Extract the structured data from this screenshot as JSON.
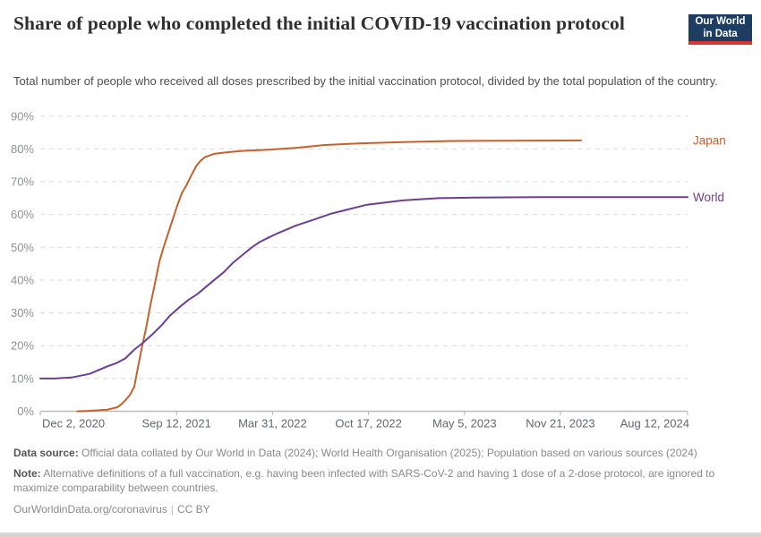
{
  "header": {
    "title": "Share of people who completed the initial COVID-19 vaccination protocol",
    "subtitle": "Total number of people who received all doses prescribed by the initial vaccination protocol, divided by the total population of the country.",
    "logo": {
      "line1": "Our World",
      "line2": "in Data",
      "bg_color": "#1d3d63",
      "accent_color": "#dc352c"
    }
  },
  "chart_data": {
    "type": "line",
    "title": "Share of people who completed the initial COVID-19 vaccination protocol",
    "grid": "dashed",
    "legend_position": "right-of-line-end",
    "x_axis": {
      "unit": "days since Dec 2, 2020",
      "range_days": [
        0,
        1349
      ],
      "ticks": [
        {
          "day": 0,
          "label": "Dec 2, 2020"
        },
        {
          "day": 284,
          "label": "Sep 12, 2021"
        },
        {
          "day": 484,
          "label": "Mar 31, 2022"
        },
        {
          "day": 684,
          "label": "Oct 17, 2022"
        },
        {
          "day": 884,
          "label": "May 5, 2023"
        },
        {
          "day": 1084,
          "label": "Nov 21, 2023"
        },
        {
          "day": 1349,
          "label": "Aug 12, 2024"
        }
      ]
    },
    "y_axis": {
      "min": 0,
      "max": 90,
      "step": 10,
      "tick_format": "%",
      "tick_labels": [
        "0%",
        "10%",
        "20%",
        "30%",
        "40%",
        "50%",
        "60%",
        "70%",
        "80%",
        "90%"
      ]
    },
    "series": [
      {
        "name": "Japan",
        "color": "#c6612c",
        "points": [
          [
            77,
            0
          ],
          [
            100,
            0.1
          ],
          [
            140,
            0.5
          ],
          [
            160,
            1.2
          ],
          [
            168,
            2
          ],
          [
            177,
            3.3
          ],
          [
            187,
            5
          ],
          [
            196,
            7.5
          ],
          [
            203,
            13
          ],
          [
            211,
            19
          ],
          [
            220,
            25
          ],
          [
            229,
            32
          ],
          [
            239,
            39
          ],
          [
            248,
            45.5
          ],
          [
            257,
            50
          ],
          [
            267,
            54.5
          ],
          [
            276,
            58.5
          ],
          [
            285,
            62.5
          ],
          [
            295,
            66.5
          ],
          [
            306,
            69.3
          ],
          [
            315,
            72
          ],
          [
            325,
            74.8
          ],
          [
            334,
            76.4
          ],
          [
            343,
            77.5
          ],
          [
            362,
            78.5
          ],
          [
            383,
            78.9
          ],
          [
            420,
            79.4
          ],
          [
            476,
            79.8
          ],
          [
            532,
            80.3
          ],
          [
            593,
            81.2
          ],
          [
            662,
            81.7
          ],
          [
            756,
            82.1
          ],
          [
            849,
            82.4
          ],
          [
            961,
            82.5
          ],
          [
            1127,
            82.6
          ]
        ]
      },
      {
        "name": "World",
        "color": "#6d3e91",
        "points": [
          [
            0,
            10
          ],
          [
            30,
            10
          ],
          [
            65,
            10.3
          ],
          [
            103,
            11.4
          ],
          [
            140,
            13.7
          ],
          [
            159,
            14.7
          ],
          [
            177,
            16.1
          ],
          [
            196,
            18.8
          ],
          [
            215,
            21
          ],
          [
            233,
            23.4
          ],
          [
            252,
            26.1
          ],
          [
            271,
            29.3
          ],
          [
            289,
            31.6
          ],
          [
            308,
            33.9
          ],
          [
            327,
            35.7
          ],
          [
            345,
            37.9
          ],
          [
            364,
            40.2
          ],
          [
            383,
            42.5
          ],
          [
            401,
            45.2
          ],
          [
            420,
            47.5
          ],
          [
            439,
            49.8
          ],
          [
            457,
            51.6
          ],
          [
            476,
            53
          ],
          [
            495,
            54.3
          ],
          [
            513,
            55.4
          ],
          [
            532,
            56.6
          ],
          [
            569,
            58.4
          ],
          [
            607,
            60.3
          ],
          [
            681,
            63
          ],
          [
            756,
            64.3
          ],
          [
            830,
            65
          ],
          [
            905,
            65.2
          ],
          [
            1036,
            65.3
          ],
          [
            1222,
            65.3
          ],
          [
            1349,
            65.3
          ]
        ]
      }
    ],
    "colors": {
      "gridline": "#dfdfdf",
      "axis_line": "#bcbcbc",
      "y_tick_label": "#8b929b",
      "x_tick_label": "#5f6973"
    }
  },
  "footer": {
    "datasource_label": "Data source:",
    "datasource_text": " Official data collated by Our World in Data (2024); World Health Organisation (2025); Population based on various sources (2024)",
    "note_label": "Note:",
    "note_text": " Alternative definitions of a full vaccination, e.g. having been infected with SARS-CoV-2 and having 1 dose of a 2-dose protocol, are ignored to maximize comparability between countries.",
    "url": "OurWorldinData.org/coronavirus",
    "separator": "|",
    "license": "CC BY"
  }
}
